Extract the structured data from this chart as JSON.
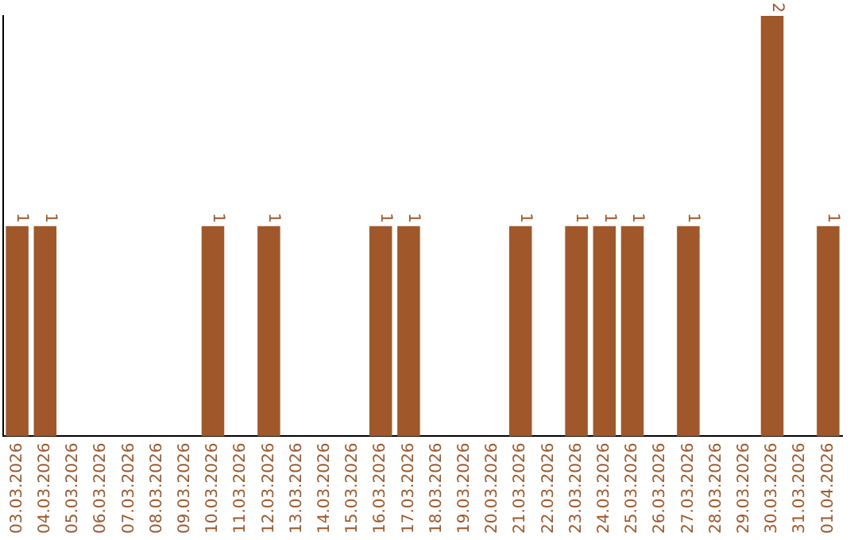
{
  "chart_data": {
    "type": "bar",
    "categories": [
      "03.03.2026",
      "04.03.2026",
      "05.03.2026",
      "06.03.2026",
      "07.03.2026",
      "08.03.2026",
      "09.03.2026",
      "10.03.2026",
      "11.03.2026",
      "12.03.2026",
      "13.03.2026",
      "14.03.2026",
      "15.03.2026",
      "16.03.2026",
      "17.03.2026",
      "18.03.2026",
      "19.03.2026",
      "20.03.2026",
      "21.03.2026",
      "22.03.2026",
      "23.03.2026",
      "24.03.2026",
      "25.03.2026",
      "26.03.2026",
      "27.03.2026",
      "28.03.2026",
      "29.03.2026",
      "30.03.2026",
      "31.03.2026",
      "01.04.2026"
    ],
    "values": [
      1,
      1,
      0,
      0,
      0,
      0,
      0,
      1,
      0,
      1,
      0,
      0,
      0,
      1,
      1,
      0,
      0,
      0,
      1,
      0,
      1,
      1,
      1,
      0,
      1,
      0,
      0,
      2,
      0,
      1
    ],
    "value_labels": [
      "1",
      "1",
      null,
      null,
      null,
      null,
      null,
      "1",
      null,
      "1",
      null,
      null,
      null,
      "1",
      "1",
      null,
      null,
      null,
      "1",
      null,
      "1",
      "1",
      "1",
      null,
      "1",
      null,
      null,
      "2",
      null,
      "1"
    ],
    "color": "#a0572a",
    "ylim": [
      0,
      2
    ],
    "tick_labels": "x",
    "grid": false,
    "legend": false
  }
}
